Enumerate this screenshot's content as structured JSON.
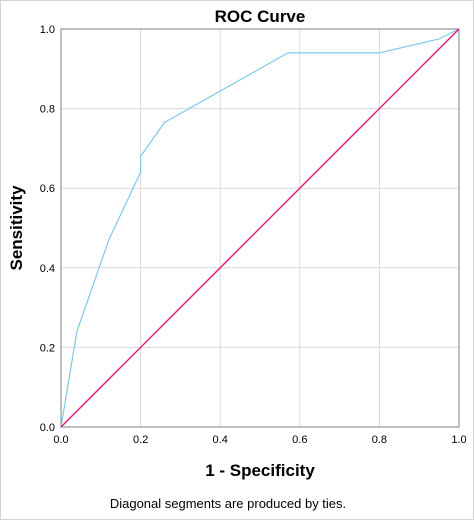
{
  "chart_data": {
    "type": "line",
    "title": "ROC Curve",
    "xlabel": "1 - Specificity",
    "ylabel": "Sensitivity",
    "xlim": [
      0,
      1
    ],
    "ylim": [
      0,
      1
    ],
    "x_ticks": [
      "0.0",
      "0.2",
      "0.4",
      "0.6",
      "0.8",
      "1.0"
    ],
    "y_ticks": [
      "0.0",
      "0.2",
      "0.4",
      "0.6",
      "0.8",
      "1.0"
    ],
    "grid": true,
    "footnote": "Diagonal segments are produced by ties.",
    "series": [
      {
        "color": "#7ec8e8",
        "x": [
          0.0,
          0.04,
          0.12,
          0.2,
          0.2,
          0.26,
          0.57,
          0.8,
          0.95,
          1.0
        ],
        "y": [
          0.0,
          0.24,
          0.47,
          0.64,
          0.68,
          0.765,
          0.94,
          0.94,
          0.975,
          1.0
        ]
      },
      {
        "color": "#e0217a",
        "x": [
          0.0,
          1.0
        ],
        "y": [
          0.0,
          1.0
        ]
      }
    ]
  }
}
